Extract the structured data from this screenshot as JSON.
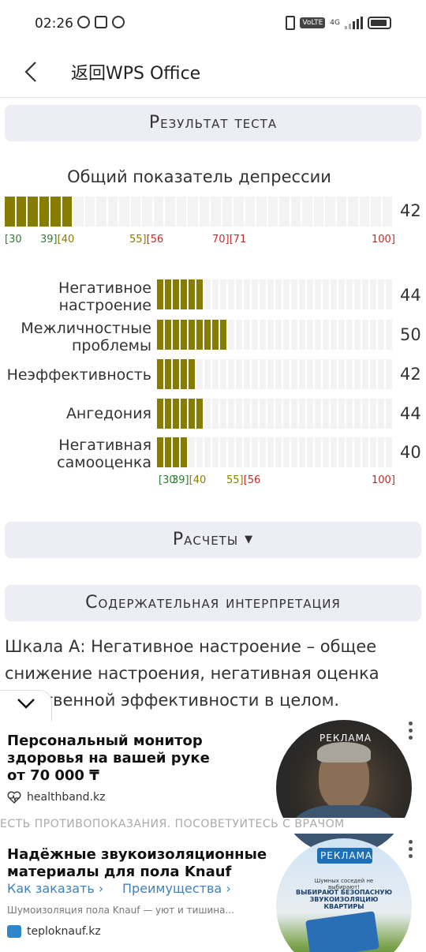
{
  "status_bar": {
    "time": "02:26",
    "volte": "VoLTE",
    "network": "4G"
  },
  "nav": {
    "title": "返回WPS Office"
  },
  "result_header": "Результат теста",
  "overall": {
    "title": "Общий показатель депрессии",
    "value": "42",
    "fill_fraction": 0.17,
    "scale": {
      "a": "[30",
      "b": "39][40",
      "c": "55][56",
      "d": "70][71",
      "e": "100]"
    }
  },
  "subscales": [
    {
      "label": "Негативное\nнастроение",
      "value": "44",
      "fill_fraction": 0.2
    },
    {
      "label": "Межличностные\nпроблемы",
      "value": "50",
      "fill_fraction": 0.29
    },
    {
      "label": "Неэффективность",
      "value": "42",
      "fill_fraction": 0.17
    },
    {
      "label": "Ангедония",
      "value": "44",
      "fill_fraction": 0.2
    },
    {
      "label": "Негативная\nсамооценка",
      "value": "40",
      "fill_fraction": 0.14
    }
  ],
  "sub_scale": {
    "a": "[30",
    "b": "39][40",
    "c": "55][56",
    "e": "100]"
  },
  "calc_header": "Расчеты",
  "interp_header": "Содержательная интерпретация",
  "interp_text": "Шкала А: Негативное настроение – общее снижение настроения, негативная оценка собственной эффективности в целом.",
  "ads": {
    "ad1": {
      "title_line1": "Персональный монитор",
      "title_line2": "здоровья на вашей руке",
      "price": "от 70 000 ₸",
      "domain": "healthband.kz",
      "badge": "РЕКЛАМА"
    },
    "disclaimer": "ЕСТЬ ПРОТИВОПОКАЗАНИЯ. ПОСОВЕТУЙТЕСЬ С ВРАЧОМ",
    "ad2": {
      "title_line1": "Надёжные звукоизоляционные",
      "title_line2": "материалы для пола Knauf",
      "link1": "Как заказать  ›",
      "link2": "Преимущества  ›",
      "subtitle": "Шумоизоляция пола Knauf — уют и тишина...",
      "domain": "teploknauf.kz",
      "badge": "РЕКЛАМА",
      "image_text1": "Шумных соседей не выбирают!",
      "image_text2": "ВЫБИРАЮТ БЕЗОПАСНУЮ\nЗВУКОИЗОЛЯЦИЮ КВАРТИРЫ"
    }
  },
  "colors": {
    "bar_fill": "#857c00",
    "track": "#f3f3f3",
    "header_bg": "#ecedf5",
    "green": "#2e7d32",
    "olive": "#8a7d00",
    "red": "#c62828"
  }
}
